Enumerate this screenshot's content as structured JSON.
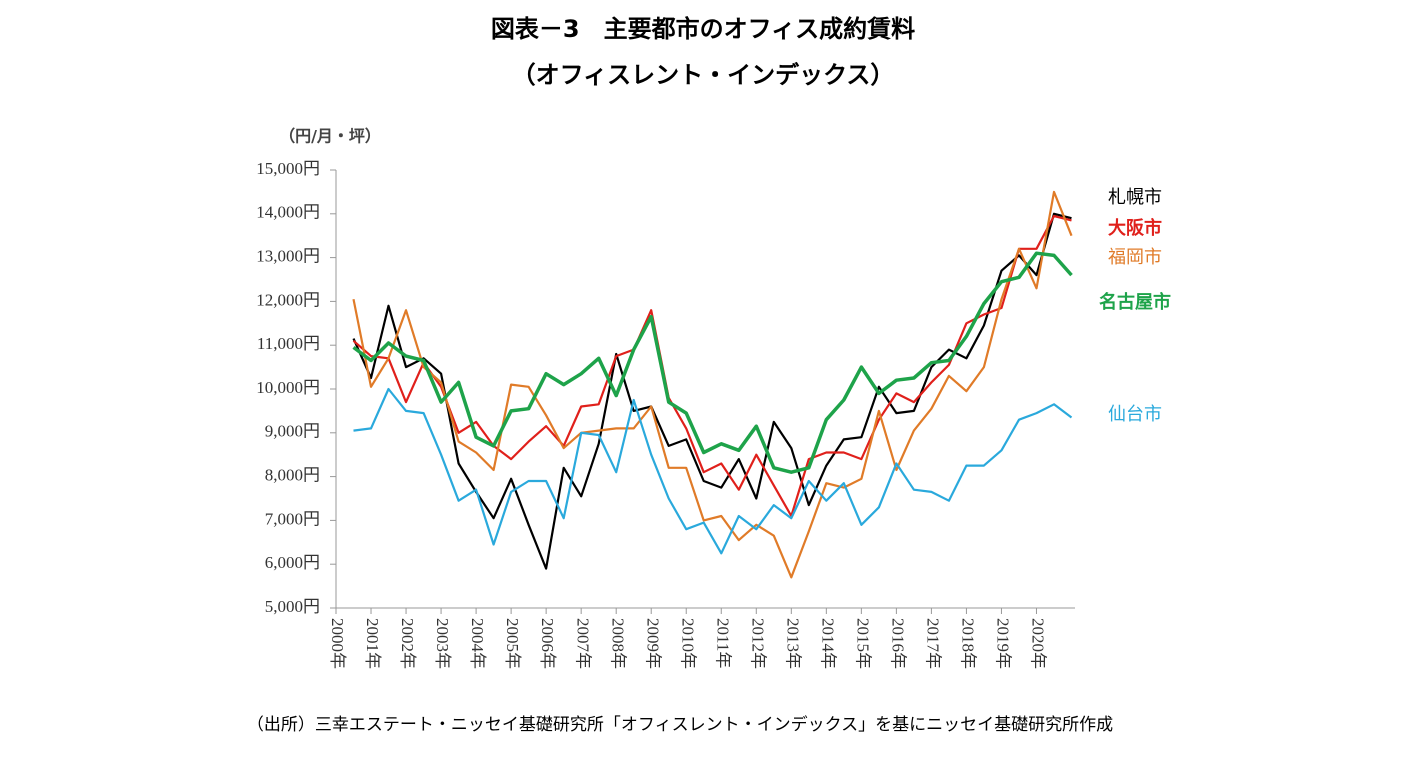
{
  "chart_data": {
    "type": "line",
    "title": "図表－3　主要都市のオフィス成約賃料",
    "subtitle": "（オフィスレント・インデックス）",
    "y_label": "（円/月・坪）",
    "source": "（出所）三幸エステート・ニッセイ基礎研究所「オフィスレント・インデックス」を基にニッセイ基礎研究所作成",
    "x": [
      2000.5,
      2001,
      2001.5,
      2002,
      2002.5,
      2003,
      2003.5,
      2004,
      2004.5,
      2005,
      2005.5,
      2006,
      2006.5,
      2007,
      2007.5,
      2008,
      2008.5,
      2009,
      2009.5,
      2010,
      2010.5,
      2011,
      2011.5,
      2012,
      2012.5,
      2013,
      2013.5,
      2014,
      2014.5,
      2015,
      2015.5,
      2016,
      2016.5,
      2017,
      2017.5,
      2018,
      2018.5,
      2019,
      2019.5,
      2020,
      2020.5,
      2021
    ],
    "xlim": [
      2000,
      2021.1
    ],
    "xticks": [
      {
        "value": 2000,
        "label": "2000年"
      },
      {
        "value": 2001,
        "label": "2001年"
      },
      {
        "value": 2002,
        "label": "2002年"
      },
      {
        "value": 2003,
        "label": "2003年"
      },
      {
        "value": 2004,
        "label": "2004年"
      },
      {
        "value": 2005,
        "label": "2005年"
      },
      {
        "value": 2006,
        "label": "2006年"
      },
      {
        "value": 2007,
        "label": "2007年"
      },
      {
        "value": 2008,
        "label": "2008年"
      },
      {
        "value": 2009,
        "label": "2009年"
      },
      {
        "value": 2010,
        "label": "2010年"
      },
      {
        "value": 2011,
        "label": "2011年"
      },
      {
        "value": 2012,
        "label": "2012年"
      },
      {
        "value": 2013,
        "label": "2013年"
      },
      {
        "value": 2014,
        "label": "2014年"
      },
      {
        "value": 2015,
        "label": "2015年"
      },
      {
        "value": 2016,
        "label": "2016年"
      },
      {
        "value": 2017,
        "label": "2017年"
      },
      {
        "value": 2018,
        "label": "2018年"
      },
      {
        "value": 2019,
        "label": "2019年"
      },
      {
        "value": 2020,
        "label": "2020年"
      }
    ],
    "ylim": [
      5000,
      15000
    ],
    "yticks": [
      {
        "value": 5000,
        "label": "5,000円"
      },
      {
        "value": 6000,
        "label": "6,000円"
      },
      {
        "value": 7000,
        "label": "7,000円"
      },
      {
        "value": 8000,
        "label": "8,000円"
      },
      {
        "value": 9000,
        "label": "9,000円"
      },
      {
        "value": 10000,
        "label": "10,000円"
      },
      {
        "value": 11000,
        "label": "11,000円"
      },
      {
        "value": 12000,
        "label": "12,000円"
      },
      {
        "value": 13000,
        "label": "13,000円"
      },
      {
        "value": 14000,
        "label": "14,000円"
      },
      {
        "value": 15000,
        "label": "15,000円"
      }
    ],
    "series": [
      {
        "name": "札幌市",
        "color": "#000000",
        "values": [
          11150,
          10250,
          11900,
          10500,
          10700,
          10350,
          8300,
          7650,
          7050,
          7950,
          6900,
          5900,
          8200,
          7550,
          8750,
          10800,
          9500,
          9600,
          8700,
          8850,
          7900,
          7750,
          8400,
          7500,
          9250,
          8650,
          7350,
          8250,
          8850,
          8900,
          10050,
          9450,
          9500,
          10500,
          10900,
          10700,
          11450,
          12700,
          13050,
          12600,
          14000,
          13900
        ]
      },
      {
        "name": "大阪市",
        "color": "#e0201b",
        "values": [
          11100,
          10750,
          10700,
          9700,
          10600,
          10050,
          9000,
          9250,
          8700,
          8400,
          8800,
          9150,
          8700,
          9600,
          9650,
          10750,
          10900,
          11800,
          9800,
          9100,
          8100,
          8300,
          7700,
          8500,
          7800,
          7100,
          8400,
          8550,
          8550,
          8400,
          9300,
          9900,
          9700,
          10150,
          10550,
          11500,
          11700,
          11850,
          13200,
          13200,
          13950,
          13850
        ]
      },
      {
        "name": "福岡市",
        "color": "#e07b28",
        "values": [
          12050,
          10050,
          10700,
          11800,
          10500,
          10150,
          8800,
          8550,
          8150,
          10100,
          10050,
          9400,
          8650,
          9000,
          9050,
          9100,
          9100,
          9600,
          8200,
          8200,
          7000,
          7100,
          6550,
          6900,
          6650,
          5700,
          6750,
          7850,
          7750,
          7950,
          9500,
          8150,
          9050,
          9550,
          10300,
          9950,
          10500,
          12050,
          13200,
          12300,
          14500,
          13500
        ]
      },
      {
        "name": "名古屋市",
        "color": "#1ea34a",
        "values": [
          10950,
          10650,
          11050,
          10750,
          10650,
          9700,
          10150,
          8900,
          8700,
          9500,
          9550,
          10350,
          10100,
          10350,
          10700,
          9850,
          10900,
          11650,
          9700,
          9450,
          8550,
          8750,
          8600,
          9150,
          8200,
          8100,
          8200,
          9300,
          9750,
          10500,
          9900,
          10200,
          10250,
          10600,
          10650,
          11200,
          11950,
          12450,
          12550,
          13100,
          13050,
          12600
        ]
      },
      {
        "name": "仙台市",
        "color": "#2aa9dc",
        "values": [
          9050,
          9100,
          10000,
          9500,
          9450,
          8500,
          7450,
          7700,
          6450,
          7650,
          7900,
          7900,
          7050,
          9000,
          8950,
          8100,
          9750,
          8500,
          7500,
          6800,
          6950,
          6250,
          7100,
          6800,
          7350,
          7050,
          7900,
          7450,
          7850,
          6900,
          7300,
          8300,
          7700,
          7650,
          7450,
          8250,
          8250,
          8600,
          9300,
          9450,
          9650,
          9350
        ]
      }
    ]
  }
}
